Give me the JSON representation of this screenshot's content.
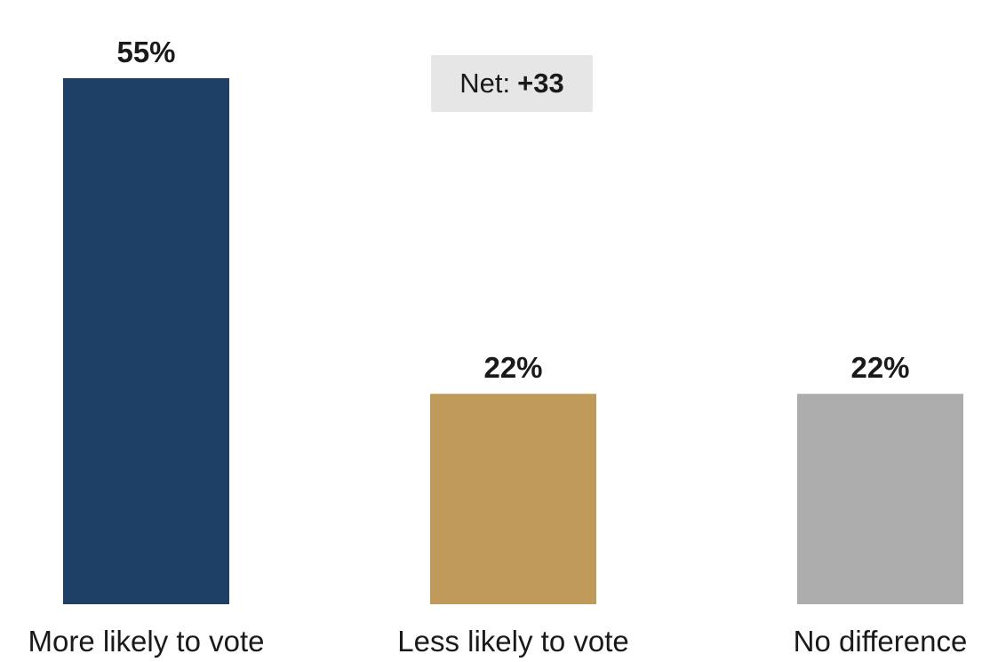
{
  "chart_data": {
    "type": "bar",
    "categories": [
      "More likely to vote",
      "Less likely to vote",
      "No difference"
    ],
    "values": [
      55,
      22,
      22
    ],
    "value_labels": [
      "55%",
      "22%",
      "22%"
    ],
    "colors": [
      "#1e3f66",
      "#c09a5a",
      "#adadad"
    ],
    "title": "",
    "xlabel": "",
    "ylabel": "",
    "ylim": [
      0,
      55
    ],
    "grid": false,
    "annotation": {
      "label": "Net:",
      "value": "+33"
    }
  }
}
